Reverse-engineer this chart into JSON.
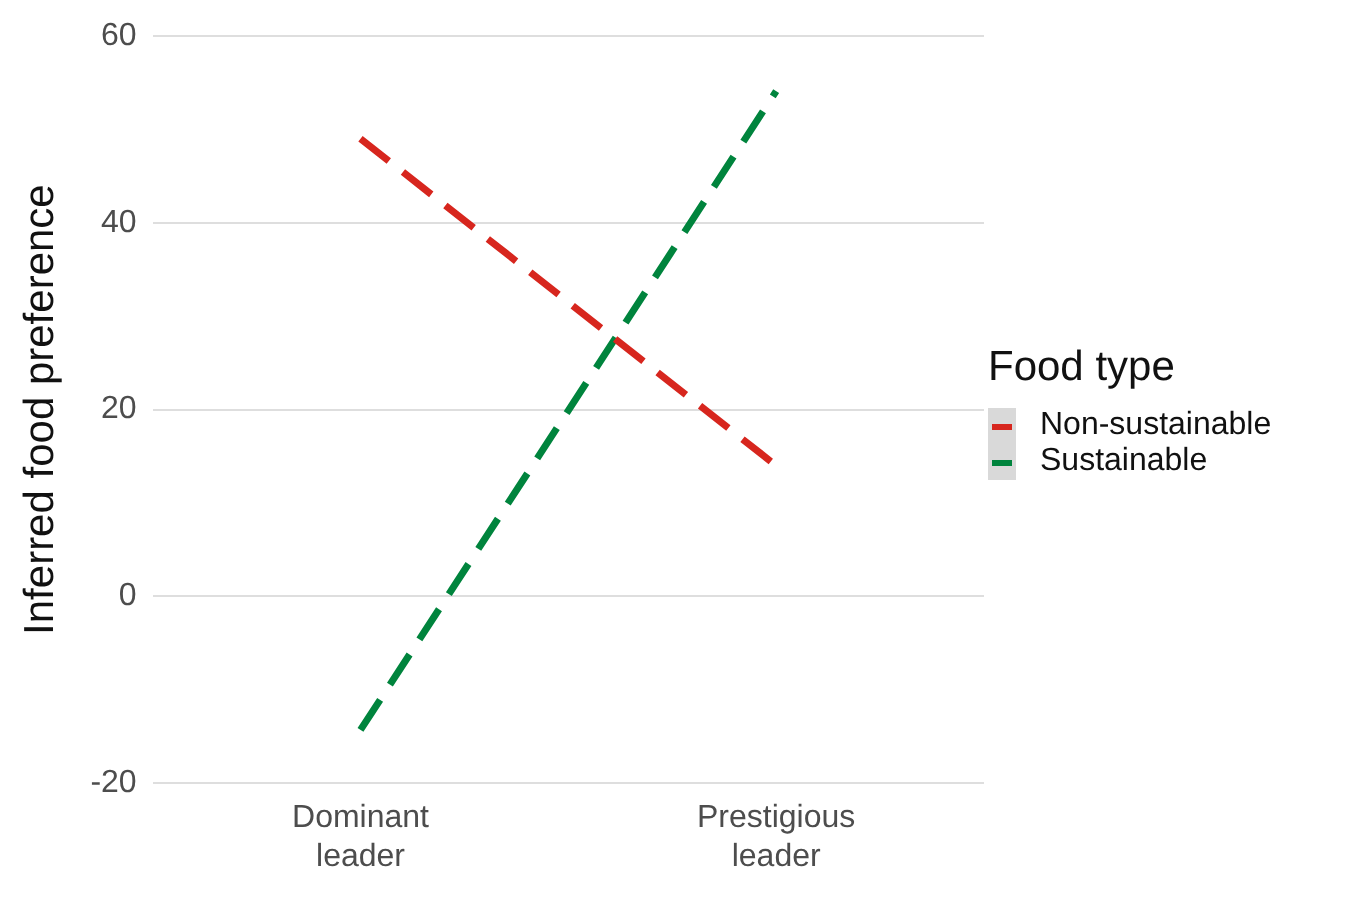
{
  "chart_data": {
    "type": "line",
    "ylabel": "Inferred food preference",
    "legend_title": "Food type",
    "categories": [
      "Dominant leader",
      "Prestigious leader"
    ],
    "series": [
      {
        "name": "Non-sustainable",
        "color": "#d7261e",
        "values": [
          49,
          14
        ]
      },
      {
        "name": "Sustainable",
        "color": "#00843d",
        "values": [
          -14.3,
          54.1
        ]
      }
    ],
    "ylim": [
      -20,
      60
    ],
    "yticks": [
      -20,
      0,
      20,
      40,
      60
    ],
    "grid": "y",
    "legend": "right",
    "marker": "none",
    "line_style": "dashed"
  }
}
